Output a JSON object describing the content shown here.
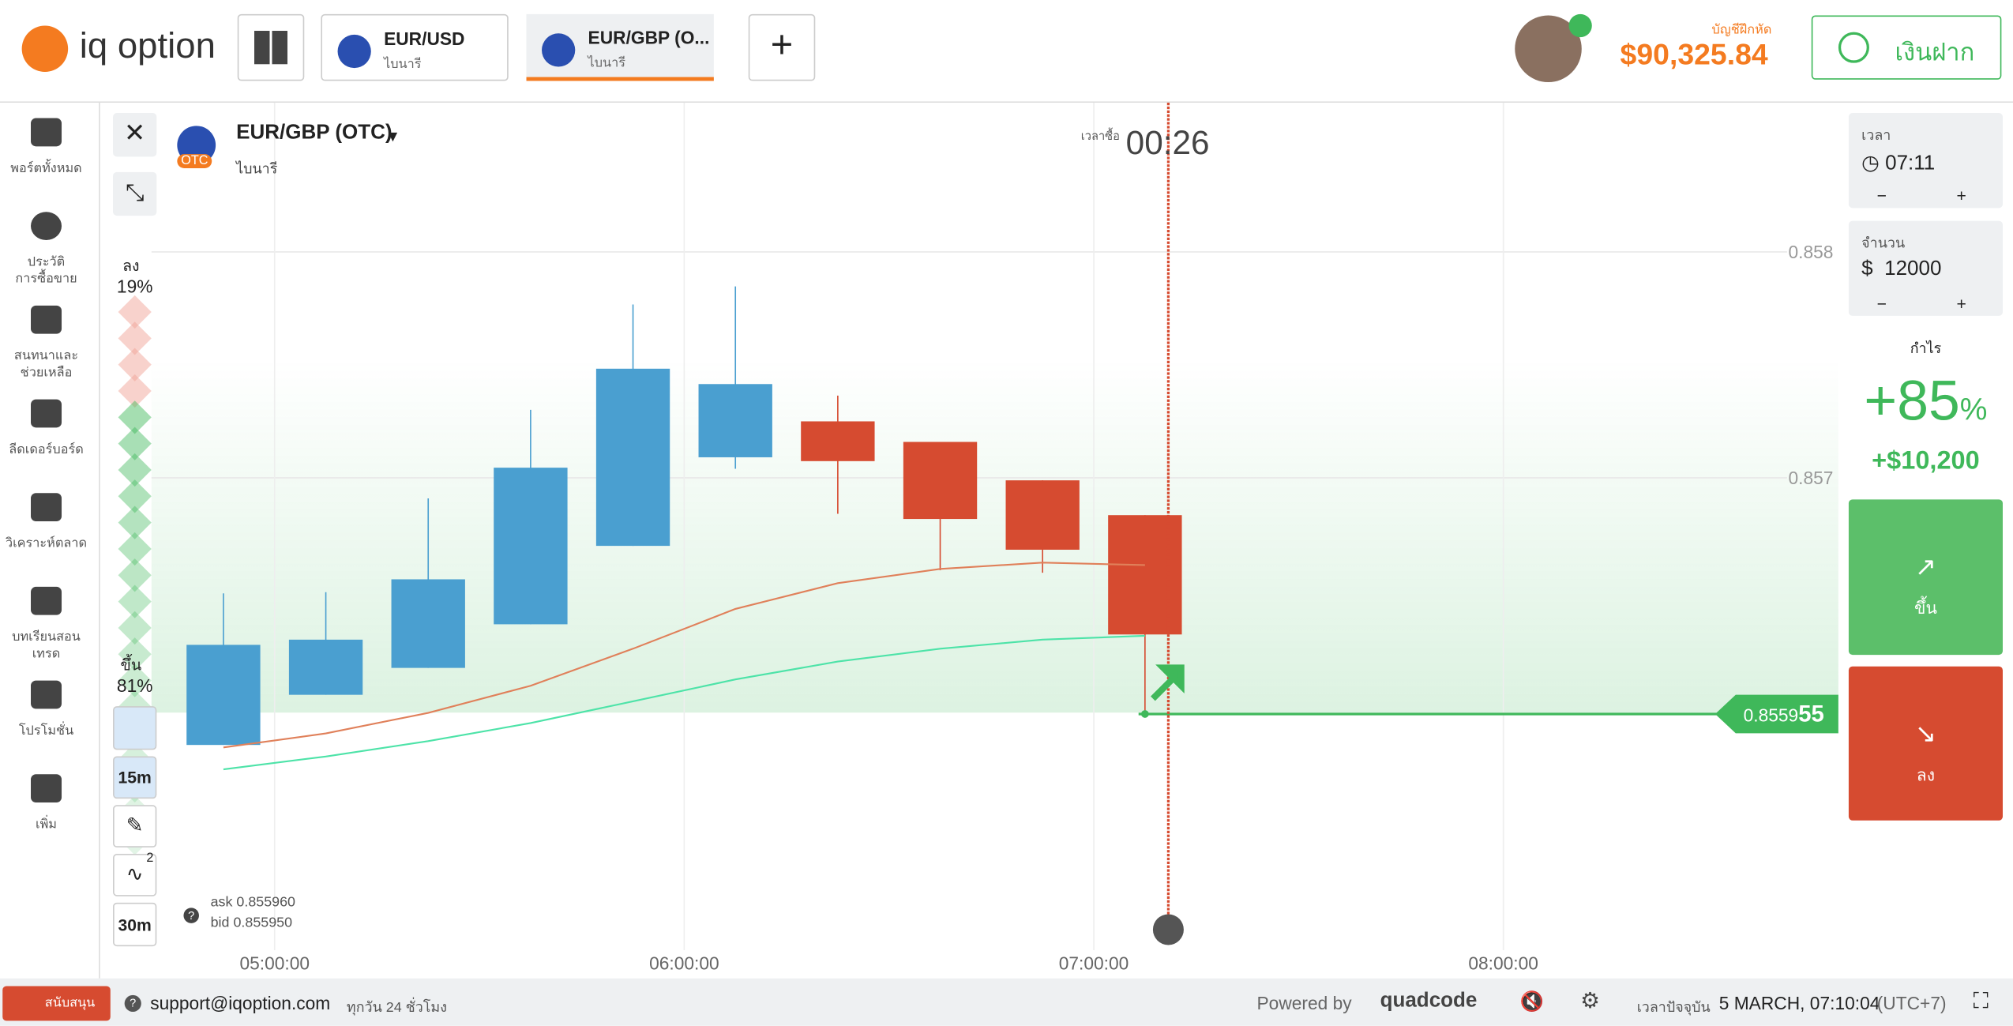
{
  "header": {
    "logo": "iq option",
    "tabs": [
      {
        "name": "EUR/USD",
        "type": "ไบนารี"
      },
      {
        "name": "EUR/GBP (O...",
        "type": "ไบนารี"
      }
    ],
    "account_label": "บัญชีฝึกหัด",
    "balance": "$90,325.84",
    "deposit": "เงินฝาก"
  },
  "sidebar": [
    "พอร์ตทั้งหมด",
    "ประวัติ\nการซื้อขาย",
    "สนทนาและ\nช่วยเหลือ",
    "ลีดเดอร์บอร์ด",
    "วิเคราะห์ตลาด",
    "บทเรียนสอนเทรด",
    "โปรโมชั่น",
    "เพิ่ม"
  ],
  "asset": {
    "name": "EUR/GBP (OTC)",
    "type": "ไบนารี",
    "badge": "OTC"
  },
  "timer": {
    "label": "เวลาซื้อ",
    "value": "00:26"
  },
  "sentiment": {
    "names": [
      "ลง",
      "ขึ้น"
    ],
    "values": [
      19,
      81
    ],
    "value_labels": [
      "19%",
      "81%"
    ],
    "colors": [
      "#f2a59a",
      "#3fb85a"
    ]
  },
  "toolbar": {
    "timeframe": "15m",
    "indicators_count": "2",
    "chart_period": "30m"
  },
  "quotes": {
    "ask_label": "ask",
    "ask": "0.855960",
    "bid_label": "bid",
    "bid": "0.855950"
  },
  "chart_data": {
    "type": "candlestick",
    "x": [
      4.875,
      5.125,
      5.375,
      5.625,
      5.875,
      6.125,
      6.375,
      6.625,
      6.875,
      7.125
    ],
    "open": [
      0.855818,
      0.85604,
      0.856159,
      0.856352,
      0.856699,
      0.857091,
      0.85725,
      0.857159,
      0.856989,
      0.856835
    ],
    "high": [
      0.856489,
      0.856494,
      0.856909,
      0.857301,
      0.857767,
      0.857847,
      0.857364,
      0.857159,
      0.856989,
      0.856835
    ],
    "low": [
      0.855818,
      0.85604,
      0.856159,
      0.856352,
      0.856699,
      0.85704,
      0.856841,
      0.856591,
      0.85658,
      0.85596
    ],
    "close": [
      0.856261,
      0.856284,
      0.856551,
      0.857045,
      0.857483,
      0.857415,
      0.857074,
      0.856818,
      0.856682,
      0.856307
    ],
    "up_color": "#4a9fd0",
    "down_color": "#d64b30",
    "series": [
      {
        "color": "#e0805a",
        "values": [
          0.855807,
          0.855869,
          0.85596,
          0.85608,
          0.856244,
          0.85642,
          0.856534,
          0.856597,
          0.856625,
          0.856614
        ]
      },
      {
        "color": "#4de3a8",
        "values": [
          0.85571,
          0.855767,
          0.855835,
          0.855915,
          0.856011,
          0.856108,
          0.856187,
          0.856244,
          0.856284,
          0.856301
        ]
      }
    ],
    "xlim": [
      4.574,
      8.818
    ],
    "xticks": [
      {
        "value": 5,
        "label": "05:00:00"
      },
      {
        "value": 6,
        "label": "06:00:00"
      },
      {
        "value": 7,
        "label": "07:00:00"
      },
      {
        "value": 8,
        "label": "08:00:00"
      }
    ],
    "ylim": [
      0.85491,
      0.85866
    ],
    "yticks": [
      0.857,
      0.858
    ],
    "grid": true,
    "current_price": 0.855955,
    "current_price_label": [
      "0.8559",
      "55"
    ],
    "purchase_time": 7.182
  },
  "right_panel": {
    "time_label": "เวลา",
    "time": "07:11",
    "amount_label": "จำนวน",
    "currency": "$",
    "amount": "12000",
    "minus": "−",
    "plus": "+",
    "profit_label": "กำไร",
    "profit_percent": "+85",
    "profit_unit": "%",
    "profit_amount": "+$10,200",
    "up": "ขึ้น",
    "down": "ลง"
  },
  "footer": {
    "support": "สนับสนุน",
    "email": "support@iqoption.com",
    "hours": "ทุกวัน 24 ชั่วโมง",
    "powered": "Powered by",
    "brand": "quadcode",
    "time_label": "เวลาปัจจุบัน",
    "time": "5 MARCH, 07:10:04",
    "tz": "(UTC+7)"
  }
}
